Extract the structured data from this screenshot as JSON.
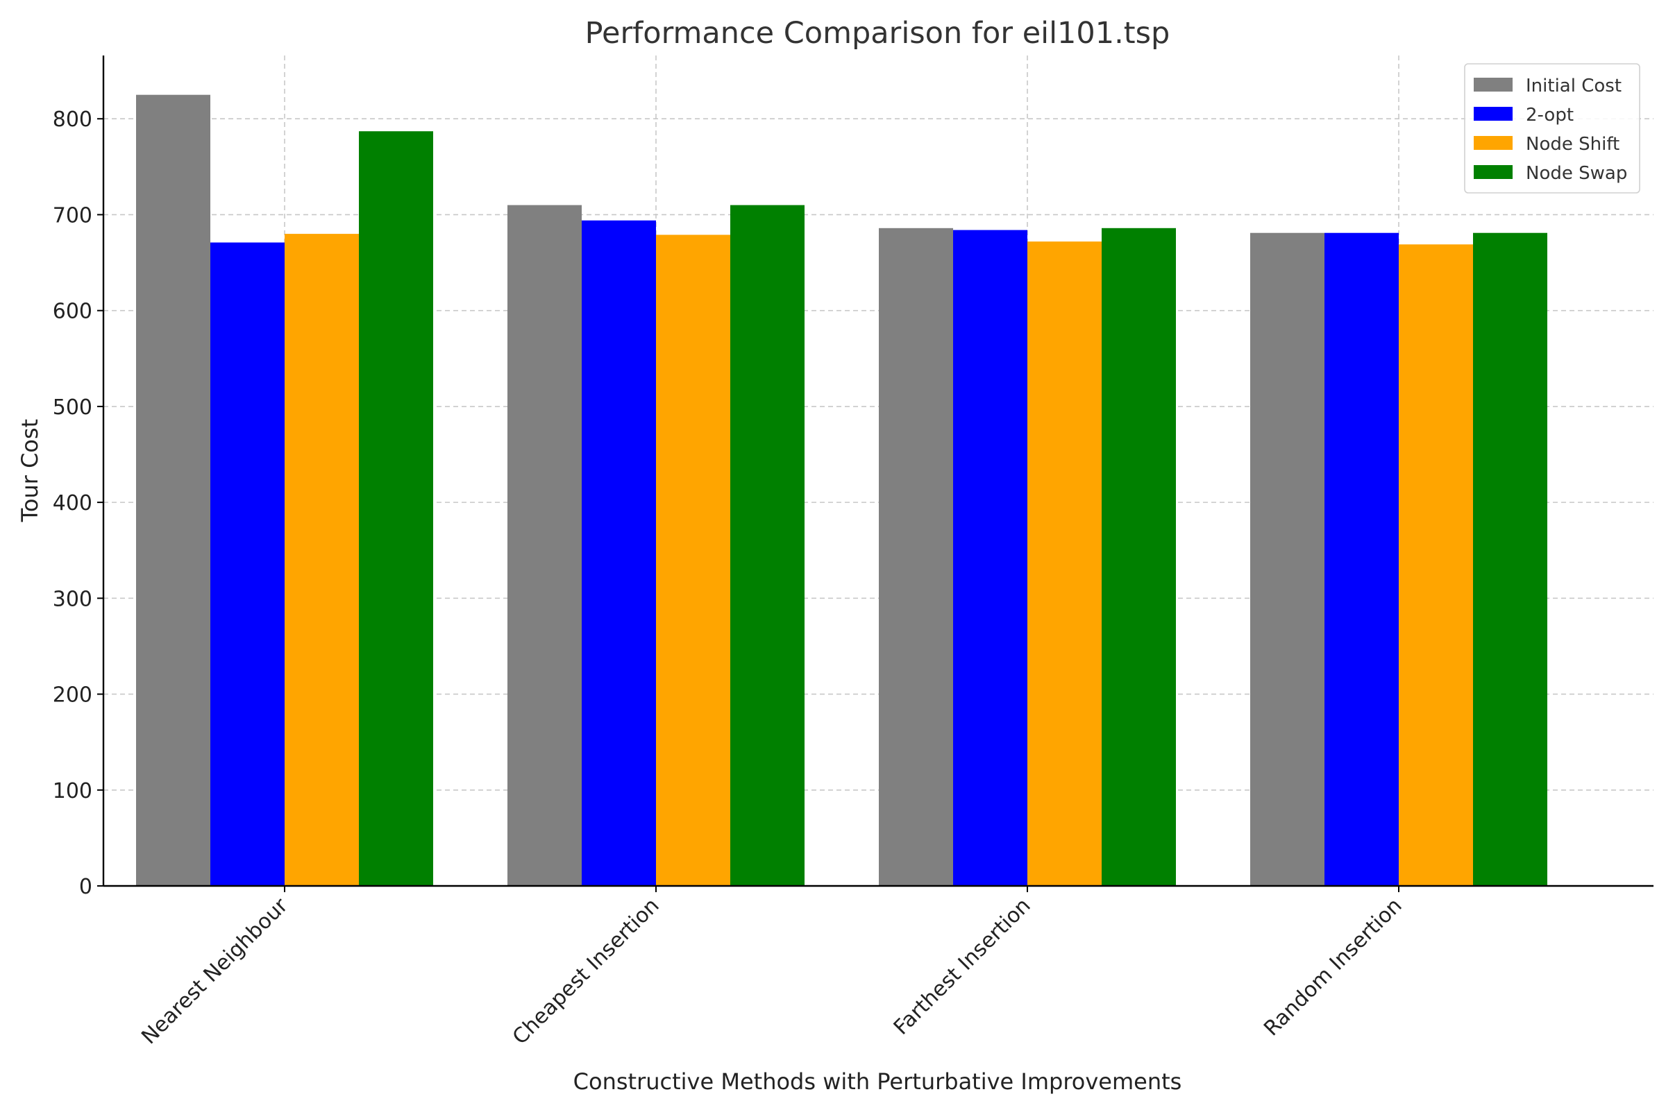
{
  "chart_data": {
    "type": "bar",
    "title": "Performance Comparison for eil101.tsp",
    "xlabel": "Constructive Methods with Perturbative Improvements",
    "ylabel": "Tour Cost",
    "categories": [
      "Nearest Neighbour",
      "Cheapest Insertion",
      "Farthest Insertion",
      "Random Insertion"
    ],
    "series": [
      {
        "name": "Initial Cost",
        "color": "#808080",
        "values": [
          825,
          710,
          686,
          681
        ]
      },
      {
        "name": "2-opt",
        "color": "#0000ff",
        "values": [
          671,
          694,
          684,
          681
        ]
      },
      {
        "name": "Node Shift",
        "color": "#ffa500",
        "values": [
          680,
          679,
          672,
          669
        ]
      },
      {
        "name": "Node Swap",
        "color": "#008000",
        "values": [
          787,
          710,
          686,
          681
        ]
      }
    ],
    "ylim": [
      0,
      866
    ],
    "yticks": [
      0,
      100,
      200,
      300,
      400,
      500,
      600,
      700,
      800
    ],
    "grid": true,
    "legend_position": "top-right"
  }
}
